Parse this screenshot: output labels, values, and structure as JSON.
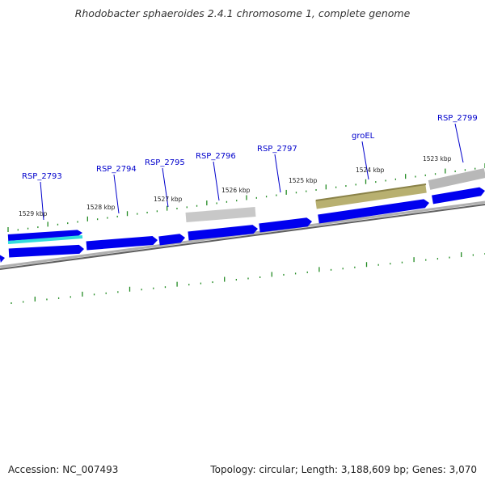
{
  "title": "Rhodobacter sphaeroides 2.4.1 chromosome 1, complete genome",
  "footer": {
    "accession": "Accession: NC_007493",
    "topology": "Topology: circular; Length: 3,188,609 bp; Genes: 3,070"
  },
  "colors": {
    "cds_forward": "#0000ee",
    "cds_reverse": "#0000ee",
    "rrna_cyan": "#33dddd",
    "pseudo_gray": "#b4b4b4",
    "groEL_olive": "#b8b070",
    "label_blue": "#0000cc",
    "tick_green": "#228b22",
    "backbone": "#808080"
  },
  "ticks": [
    {
      "kbp": 1529,
      "label": "1529 kbp"
    },
    {
      "kbp": 1528,
      "label": "1528 kbp"
    },
    {
      "kbp": 1527,
      "label": "1527 kbp"
    },
    {
      "kbp": 1526,
      "label": "1526 kbp"
    },
    {
      "kbp": 1525,
      "label": "1525 kbp"
    },
    {
      "kbp": 1524,
      "label": "1524 kbp"
    },
    {
      "kbp": 1523,
      "label": "1523 kbp"
    }
  ],
  "gene_labels": [
    {
      "name": "RSP_2793"
    },
    {
      "name": "RSP_2794"
    },
    {
      "name": "RSP_2795"
    },
    {
      "name": "RSP_2796"
    },
    {
      "name": "RSP_2797"
    },
    {
      "name": "groEL"
    },
    {
      "name": "RSP_2799"
    }
  ]
}
